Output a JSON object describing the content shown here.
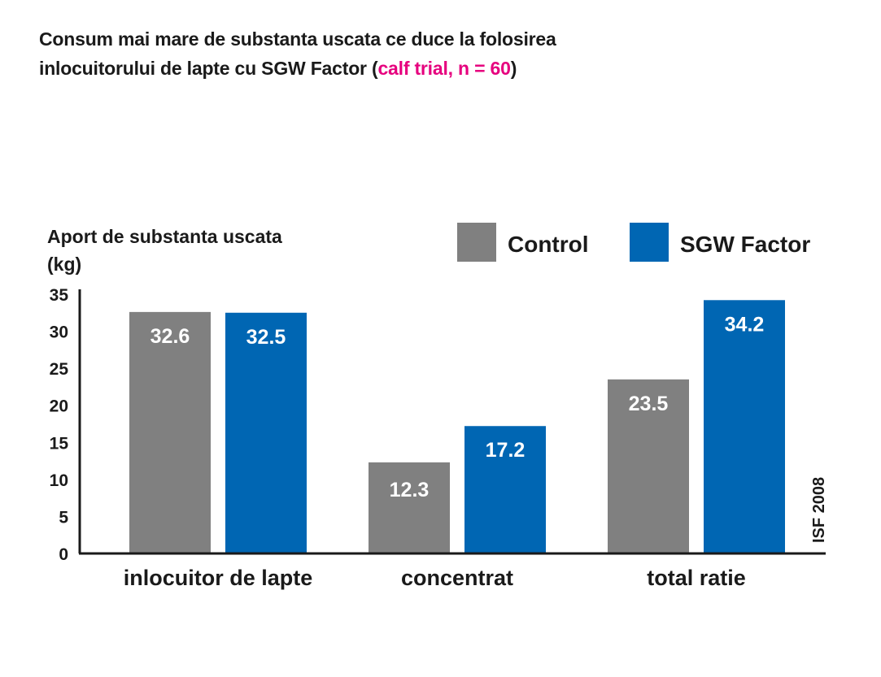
{
  "chart_data": {
    "type": "bar",
    "title_line1": "Consum mai mare de substanta uscata ce duce la folosirea",
    "title_line2_prefix": "inlocuitorului de lapte cu SGW Factor (",
    "title_highlight": "calf trial, n = 60",
    "title_line2_suffix": ")",
    "ylabel_line1": "Aport de substanta uscata",
    "ylabel_line2": "(kg)",
    "categories": [
      "inlocuitor de lapte",
      "concentrat",
      "total ratie"
    ],
    "series": [
      {
        "name": "Control",
        "values": [
          32.6,
          12.3,
          23.5
        ],
        "color": "#808080"
      },
      {
        "name": "SGW Factor",
        "values": [
          32.5,
          17.2,
          34.2
        ],
        "color": "#0066b3"
      }
    ],
    "ylim": [
      0,
      35
    ],
    "yticks": [
      0,
      5,
      10,
      15,
      20,
      25,
      30,
      35
    ],
    "grid": false,
    "legend_position": "top-right",
    "source_note": "ISF 2008",
    "highlight_color": "#e6007e"
  }
}
